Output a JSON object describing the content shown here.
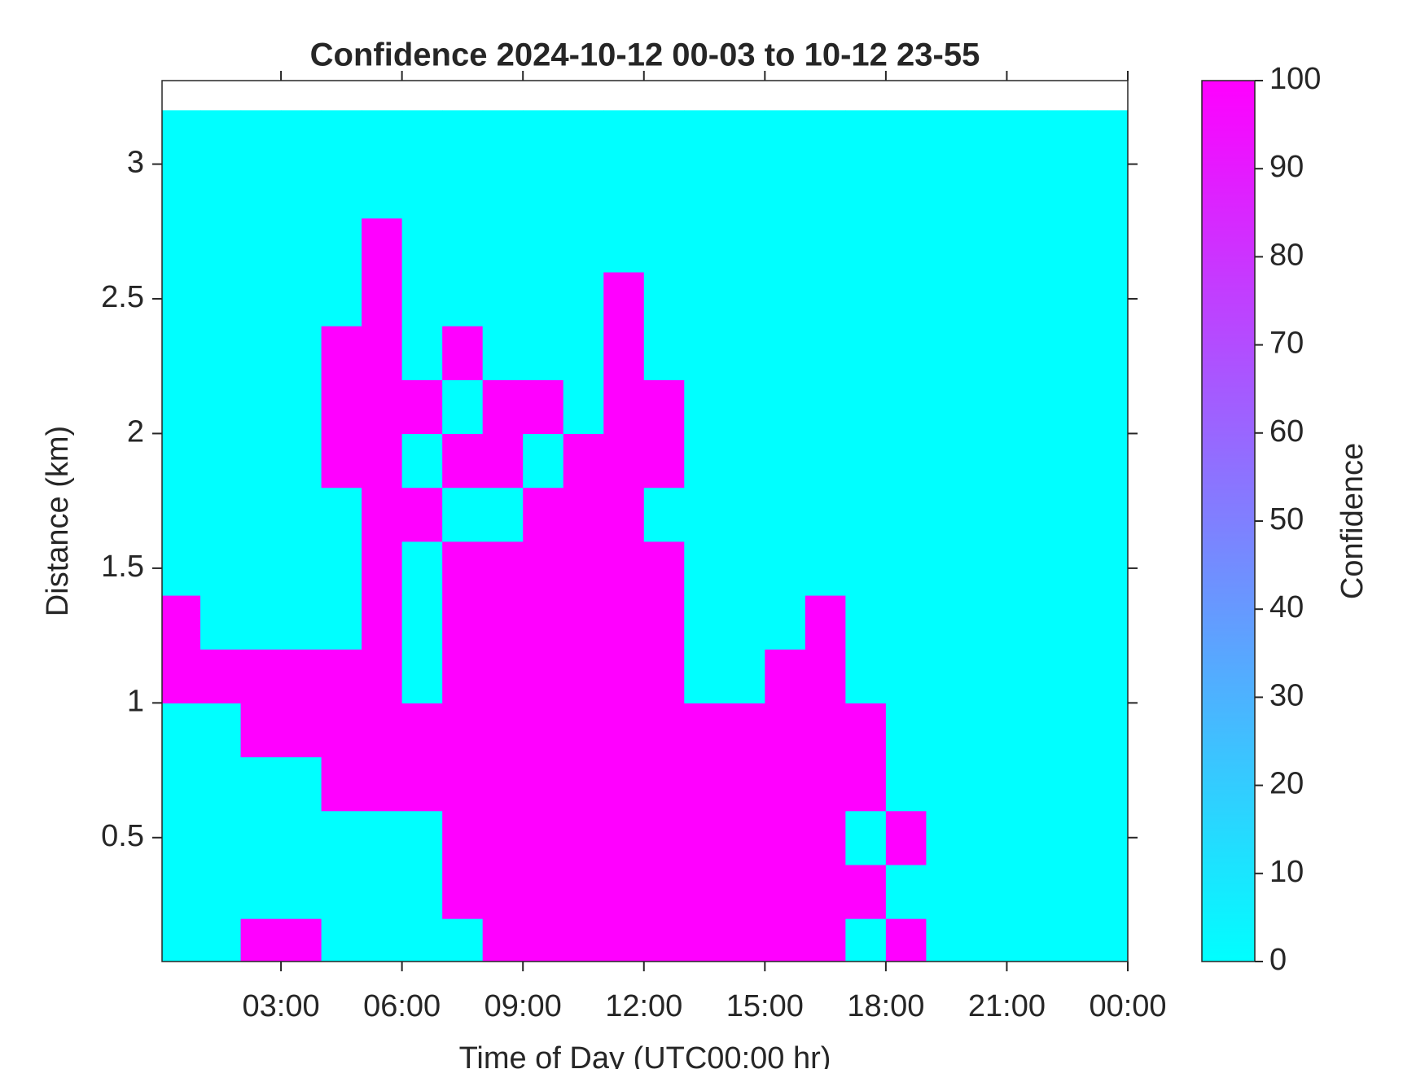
{
  "chart_data": {
    "type": "heatmap",
    "title": "Confidence 2024-10-12 00-03 to 10-12 23-55",
    "xlabel": "Time of Day (UTC00:00 hr)",
    "ylabel": "Distance (km)",
    "colorbar_label": "Confidence",
    "colormap": "cool",
    "clim": [
      0,
      100
    ],
    "cticks": [
      0,
      10,
      20,
      30,
      40,
      50,
      60,
      70,
      80,
      90,
      100
    ],
    "xlim": [
      0.05,
      24
    ],
    "xticks": [
      {
        "value": 3,
        "label": "03:00"
      },
      {
        "value": 6,
        "label": "06:00"
      },
      {
        "value": 9,
        "label": "09:00"
      },
      {
        "value": 12,
        "label": "12:00"
      },
      {
        "value": 15,
        "label": "15:00"
      },
      {
        "value": 18,
        "label": "18:00"
      },
      {
        "value": 21,
        "label": "21:00"
      },
      {
        "value": 24,
        "label": "00:00"
      }
    ],
    "ylim": [
      0.04,
      3.31
    ],
    "yticks": [
      0.5,
      1,
      1.5,
      2,
      2.5,
      3
    ],
    "x": [
      0.5,
      1.5,
      2.5,
      3.5,
      4.5,
      5.5,
      6.5,
      7.5,
      8.5,
      9.5,
      10.5,
      11.5,
      12.5,
      13.5,
      14.5,
      15.5,
      16.5,
      17.5,
      18.5,
      19.5,
      20.5,
      21.5,
      22.5,
      23.5
    ],
    "y": [
      0.1,
      0.3,
      0.5,
      0.7,
      0.9,
      1.1,
      1.3,
      1.5,
      1.7,
      1.9,
      2.1,
      2.3,
      2.5,
      2.7,
      2.9,
      3.1
    ],
    "z": [
      [
        0,
        0,
        100,
        100,
        0,
        0,
        0,
        0,
        100,
        100,
        100,
        100,
        100,
        100,
        100,
        100,
        100,
        0,
        100,
        0,
        0,
        0,
        0,
        0
      ],
      [
        0,
        0,
        0,
        0,
        0,
        0,
        0,
        100,
        100,
        100,
        100,
        100,
        100,
        100,
        100,
        100,
        100,
        100,
        0,
        0,
        0,
        0,
        0,
        0
      ],
      [
        0,
        0,
        0,
        0,
        0,
        0,
        0,
        100,
        100,
        100,
        100,
        100,
        100,
        100,
        100,
        100,
        100,
        0,
        100,
        0,
        0,
        0,
        0,
        0
      ],
      [
        0,
        0,
        0,
        0,
        100,
        100,
        100,
        100,
        100,
        100,
        100,
        100,
        100,
        100,
        100,
        100,
        100,
        100,
        0,
        0,
        0,
        0,
        0,
        0
      ],
      [
        0,
        0,
        100,
        100,
        100,
        100,
        100,
        100,
        100,
        100,
        100,
        100,
        100,
        100,
        100,
        100,
        100,
        100,
        0,
        0,
        0,
        0,
        0,
        0
      ],
      [
        100,
        100,
        100,
        100,
        100,
        100,
        0,
        100,
        100,
        100,
        100,
        100,
        100,
        0,
        0,
        100,
        100,
        0,
        0,
        0,
        0,
        0,
        0,
        0
      ],
      [
        100,
        0,
        0,
        0,
        0,
        100,
        0,
        100,
        100,
        100,
        100,
        100,
        100,
        0,
        0,
        0,
        100,
        0,
        0,
        0,
        0,
        0,
        0,
        0
      ],
      [
        0,
        0,
        0,
        0,
        0,
        100,
        0,
        100,
        100,
        100,
        100,
        100,
        100,
        0,
        0,
        0,
        0,
        0,
        0,
        0,
        0,
        0,
        0,
        0
      ],
      [
        0,
        0,
        0,
        0,
        0,
        100,
        100,
        0,
        0,
        100,
        100,
        100,
        0,
        0,
        0,
        0,
        0,
        0,
        0,
        0,
        0,
        0,
        0,
        0
      ],
      [
        0,
        0,
        0,
        0,
        100,
        100,
        0,
        100,
        100,
        0,
        100,
        100,
        100,
        0,
        0,
        0,
        0,
        0,
        0,
        0,
        0,
        0,
        0,
        0
      ],
      [
        0,
        0,
        0,
        0,
        100,
        100,
        100,
        0,
        100,
        100,
        0,
        100,
        100,
        0,
        0,
        0,
        0,
        0,
        0,
        0,
        0,
        0,
        0,
        0
      ],
      [
        0,
        0,
        0,
        0,
        100,
        100,
        0,
        100,
        0,
        0,
        0,
        100,
        0,
        0,
        0,
        0,
        0,
        0,
        0,
        0,
        0,
        0,
        0,
        0
      ],
      [
        0,
        0,
        0,
        0,
        0,
        100,
        0,
        0,
        0,
        0,
        0,
        100,
        0,
        0,
        0,
        0,
        0,
        0,
        0,
        0,
        0,
        0,
        0,
        0
      ],
      [
        0,
        0,
        0,
        0,
        0,
        100,
        0,
        0,
        0,
        0,
        0,
        0,
        0,
        0,
        0,
        0,
        0,
        0,
        0,
        0,
        0,
        0,
        0,
        0
      ],
      [
        0,
        0,
        0,
        0,
        0,
        0,
        0,
        0,
        0,
        0,
        0,
        0,
        0,
        0,
        0,
        0,
        0,
        0,
        0,
        0,
        0,
        0,
        0,
        0
      ],
      [
        0,
        0,
        0,
        0,
        0,
        0,
        0,
        0,
        0,
        0,
        0,
        0,
        0,
        0,
        0,
        0,
        0,
        0,
        0,
        0,
        0,
        0,
        0,
        0
      ]
    ]
  }
}
